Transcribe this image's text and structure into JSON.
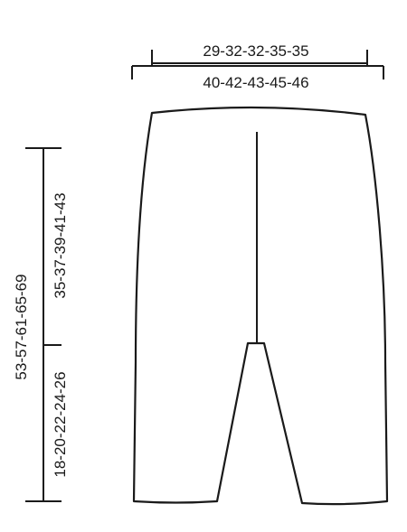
{
  "measurements": {
    "top_width_upper": "29-32-32-35-35",
    "top_width_lower": "40-42-43-45-46",
    "total_length": "53-57-61-65-69",
    "upper_length": "35-37-39-41-43",
    "lower_length": "18-20-22-24-26"
  }
}
